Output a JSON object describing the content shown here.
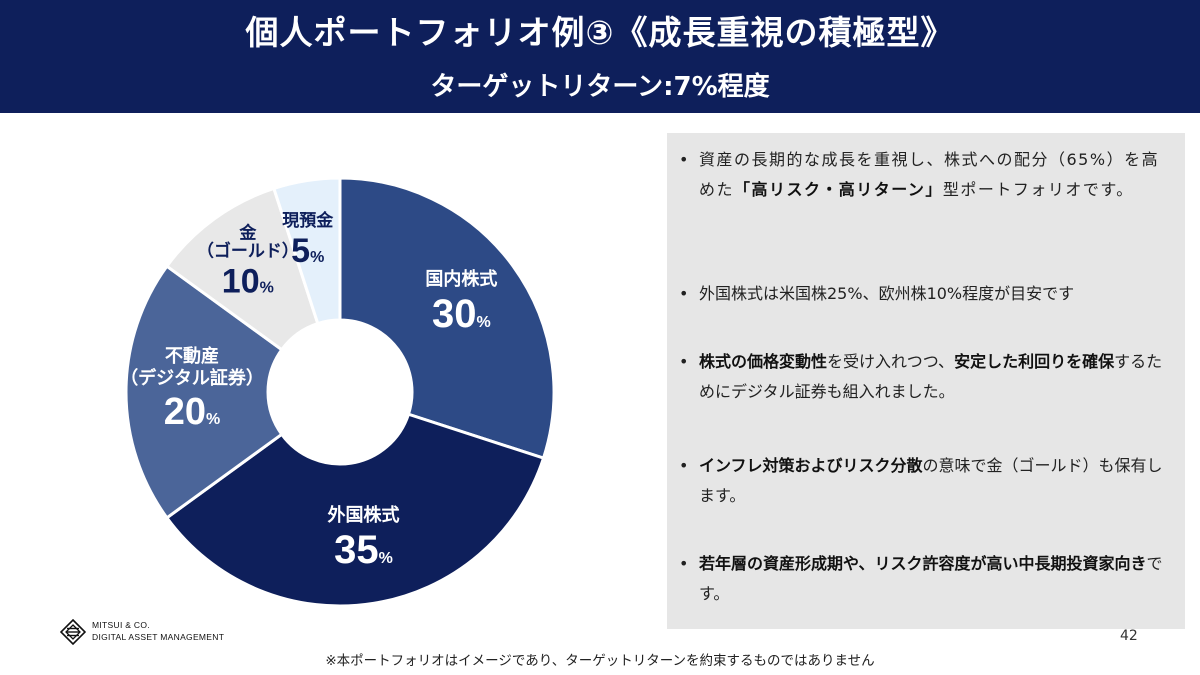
{
  "header": {
    "title": "個人ポートフォリオ例③《成長重視の積極型》",
    "subtitle": "ターゲットリターン:7%程度"
  },
  "chart_data": {
    "type": "pie",
    "donut": true,
    "start_angle_deg": 0,
    "direction": "clockwise",
    "slices": [
      {
        "label": "国内株式",
        "value": 30,
        "display": "30",
        "unit": "%",
        "color": "#2d4a86",
        "text_color": "#ffffff"
      },
      {
        "label": "外国株式",
        "value": 35,
        "display": "35",
        "unit": "%",
        "color": "#0e1f5b",
        "text_color": "#ffffff"
      },
      {
        "label": "不動産",
        "label2": "（デジタル証券）",
        "value": 20,
        "display": "20",
        "unit": "%",
        "color": "#4b6599",
        "text_color": "#ffffff"
      },
      {
        "label": "金",
        "label2": "（ゴールド）",
        "value": 10,
        "display": "10",
        "unit": "%",
        "color": "#e8e8e8",
        "text_color": "#0e1f5b"
      },
      {
        "label": "現預金",
        "value": 5,
        "display": "5",
        "unit": "%",
        "color": "#e4f0fb",
        "text_color": "#0e1f5b"
      }
    ]
  },
  "bullets": [
    {
      "parts": [
        {
          "t": "資産の長期的な成長を重視し、株式への配分（65%）を高めた",
          "b": false
        },
        {
          "t": "「高リスク・高リターン」",
          "b": true
        },
        {
          "t": "型ポートフォリオです。",
          "b": false
        }
      ]
    },
    {
      "parts": [
        {
          "t": "外国株式は米国株25%、欧州株10%程度が目安です",
          "b": false
        }
      ]
    },
    {
      "parts": [
        {
          "t": "株式の価格変動性",
          "b": true
        },
        {
          "t": "を受け入れつつ、",
          "b": false
        },
        {
          "t": "安定した利回りを確保",
          "b": true
        },
        {
          "t": "するためにデジタル証券も組入れました。",
          "b": false
        }
      ]
    },
    {
      "parts": [
        {
          "t": "インフレ対策およびリスク分散",
          "b": true
        },
        {
          "t": "の意味で金（ゴールド）も保有します。",
          "b": false
        }
      ]
    },
    {
      "parts": [
        {
          "t": "若年層の資産形成期や、リスク許容度が高い中長期投資家向き",
          "b": true
        },
        {
          "t": "です。",
          "b": false
        }
      ]
    }
  ],
  "bullet_mark": "•",
  "logo": {
    "line1": "MITSUI & CO.",
    "line2": "DIGITAL ASSET MANAGEMENT",
    "icon": "mitsui-logo-icon"
  },
  "page_number": "42",
  "footnote": "※本ポートフォリオはイメージであり、ターゲットリターンを約束するものではありません"
}
